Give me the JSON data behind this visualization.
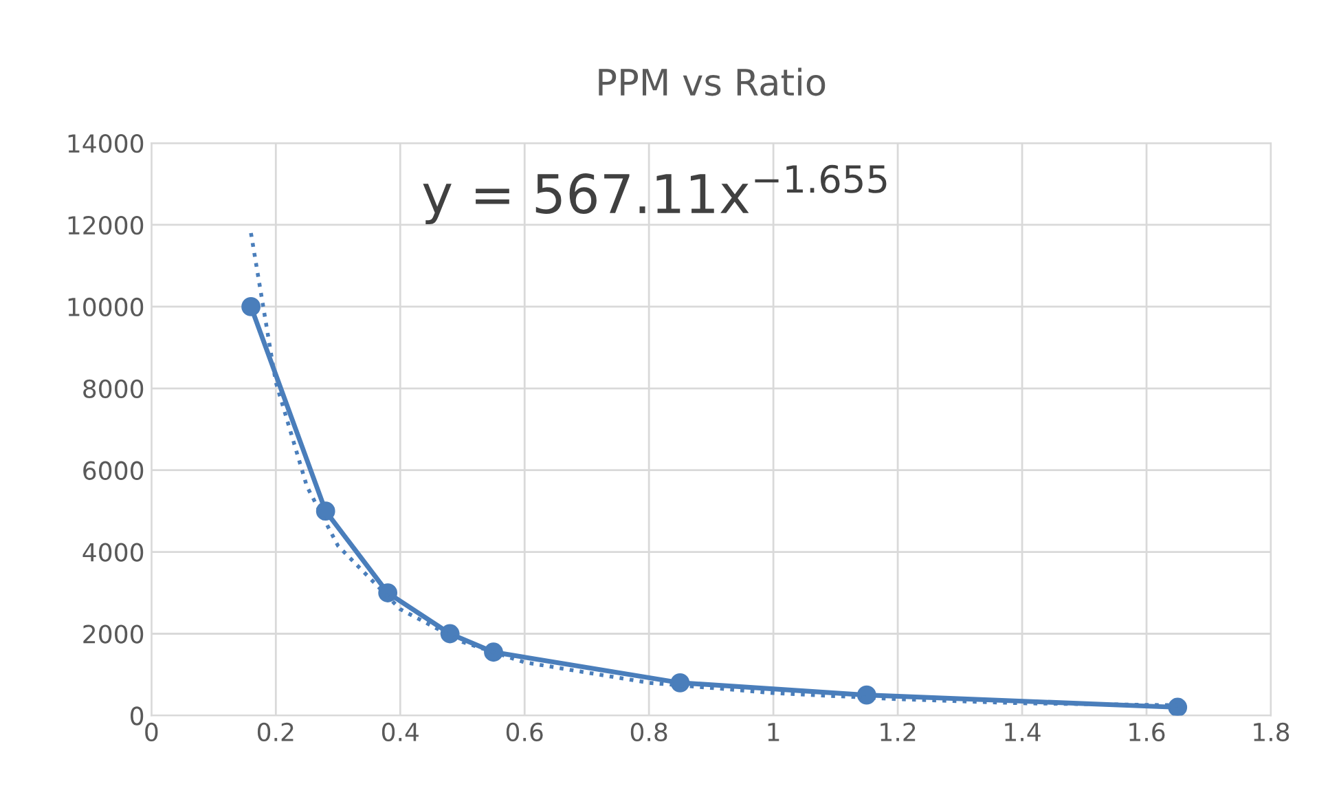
{
  "chart_data": {
    "type": "line",
    "title": "PPM vs Ratio",
    "series": [
      {
        "color": "#4a7ebb",
        "x": [
          0.16,
          0.28,
          0.38,
          0.48,
          0.55,
          0.85,
          1.15,
          1.65
        ],
        "values": [
          10000,
          5000,
          3000,
          2000,
          1550,
          800,
          500,
          200
        ],
        "marker": "circle",
        "line_style": "solid"
      },
      {
        "color": "#4a7ebb",
        "x": [
          0.16,
          0.2,
          0.25,
          0.3,
          0.4,
          0.5,
          0.6,
          0.8,
          1.0,
          1.2,
          1.4,
          1.65
        ],
        "values": [
          11800,
          8150,
          5600,
          4150,
          2600,
          1800,
          1300,
          800,
          550,
          400,
          300,
          250
        ],
        "marker": "none",
        "line_style": "dotted"
      }
    ],
    "annotations": [
      "y = 567.11x$^{−1.655}$"
    ],
    "xlim": [
      0,
      1.8
    ],
    "xticks": [
      0,
      0.2,
      0.4,
      0.6,
      0.8,
      1,
      1.2,
      1.4,
      1.6,
      1.8
    ],
    "ylim": [
      0,
      14000
    ],
    "yticks": [
      0,
      2000,
      4000,
      6000,
      8000,
      10000,
      12000,
      14000
    ],
    "grid": true,
    "legend": false
  }
}
